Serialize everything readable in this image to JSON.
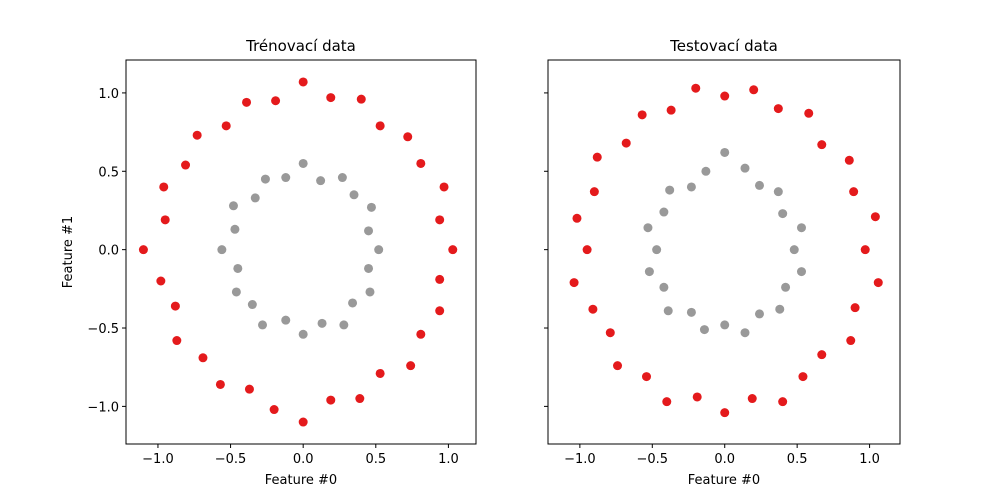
{
  "chart_data": [
    {
      "type": "scatter",
      "title": "Trénovací data",
      "xlabel": "Feature #0",
      "ylabel": "Feature #1",
      "xlim": [
        -1.22,
        1.19
      ],
      "ylim": [
        -1.24,
        1.21
      ],
      "xticks": [
        {
          "value": -1,
          "label": "−1.0"
        },
        {
          "value": -0.5,
          "label": "−0.5"
        },
        {
          "value": 0,
          "label": "0.0"
        },
        {
          "value": 0.5,
          "label": "0.5"
        },
        {
          "value": 1,
          "label": "1.0"
        }
      ],
      "yticks": [
        {
          "value": -1,
          "label": "−1.0"
        },
        {
          "value": -0.5,
          "label": "−0.5"
        },
        {
          "value": 0,
          "label": "0.0"
        },
        {
          "value": 0.5,
          "label": "0.5"
        },
        {
          "value": 1,
          "label": "1.0"
        }
      ],
      "show_ytick_labels": true,
      "series": [
        {
          "color": "#e41a1c",
          "x": [
            1.03,
            0.94,
            0.97,
            0.81,
            0.72,
            0.53,
            0.4,
            0.19,
            0.0,
            -0.19,
            -0.39,
            -0.53,
            -0.73,
            -0.81,
            -0.96,
            -0.95,
            -1.1,
            -0.98,
            -0.88,
            -0.87,
            -0.69,
            -0.57,
            -0.37,
            -0.2,
            0.0,
            0.19,
            0.39,
            0.53,
            0.74,
            0.81,
            0.94,
            0.94
          ],
          "y": [
            0.0,
            0.19,
            0.4,
            0.55,
            0.72,
            0.79,
            0.96,
            0.97,
            1.07,
            0.95,
            0.94,
            0.79,
            0.73,
            0.54,
            0.4,
            0.19,
            0.0,
            -0.2,
            -0.36,
            -0.58,
            -0.69,
            -0.86,
            -0.89,
            -1.02,
            -1.1,
            -0.96,
            -0.95,
            -0.79,
            -0.74,
            -0.54,
            -0.39,
            -0.19
          ]
        },
        {
          "color": "#999999",
          "x": [
            0.52,
            0.45,
            0.47,
            0.35,
            0.27,
            0.12,
            0.0,
            -0.12,
            -0.26,
            -0.33,
            -0.48,
            -0.47,
            -0.56,
            -0.45,
            -0.46,
            -0.35,
            -0.28,
            -0.12,
            0.0,
            0.13,
            0.28,
            0.34,
            0.46,
            0.45
          ],
          "y": [
            0.0,
            0.12,
            0.27,
            0.35,
            0.46,
            0.44,
            0.55,
            0.46,
            0.45,
            0.33,
            0.28,
            0.13,
            0.0,
            -0.12,
            -0.27,
            -0.35,
            -0.48,
            -0.45,
            -0.54,
            -0.47,
            -0.48,
            -0.34,
            -0.27,
            -0.12
          ]
        }
      ]
    },
    {
      "type": "scatter",
      "title": "Testovací data",
      "xlabel": "Feature #0",
      "xlim": [
        -1.22,
        1.21
      ],
      "ylim": [
        -1.24,
        1.21
      ],
      "xticks": [
        {
          "value": -1,
          "label": "−1.0"
        },
        {
          "value": -0.5,
          "label": "−0.5"
        },
        {
          "value": 0,
          "label": "0.0"
        },
        {
          "value": 0.5,
          "label": "0.5"
        },
        {
          "value": 1,
          "label": "1.0"
        }
      ],
      "yticks": [
        -1,
        -0.5,
        0,
        0.5,
        1
      ],
      "show_ytick_labels": false,
      "series": [
        {
          "color": "#e41a1c",
          "x": [
            0.97,
            1.04,
            0.89,
            0.86,
            0.67,
            0.58,
            0.37,
            0.2,
            0.0,
            -0.2,
            -0.37,
            -0.57,
            -0.68,
            -0.88,
            -0.9,
            -1.02,
            -0.95,
            -1.04,
            -0.91,
            -0.79,
            -0.74,
            -0.54,
            -0.4,
            -0.19,
            0.0,
            0.19,
            0.4,
            0.54,
            0.67,
            0.87,
            0.9,
            1.06
          ],
          "y": [
            0.0,
            0.21,
            0.37,
            0.57,
            0.67,
            0.87,
            0.9,
            1.02,
            0.98,
            1.03,
            0.89,
            0.86,
            0.68,
            0.59,
            0.37,
            0.2,
            0.0,
            -0.21,
            -0.38,
            -0.53,
            -0.74,
            -0.81,
            -0.97,
            -0.94,
            -1.04,
            -0.95,
            -0.97,
            -0.81,
            -0.67,
            -0.58,
            -0.37,
            -0.21
          ]
        },
        {
          "color": "#999999",
          "x": [
            0.48,
            0.53,
            0.4,
            0.37,
            0.24,
            0.14,
            0.0,
            -0.13,
            -0.23,
            -0.38,
            -0.42,
            -0.53,
            -0.47,
            -0.52,
            -0.42,
            -0.39,
            -0.23,
            -0.14,
            0.0,
            0.14,
            0.24,
            0.38,
            0.42,
            0.53
          ],
          "y": [
            0.0,
            0.14,
            0.23,
            0.37,
            0.41,
            0.52,
            0.62,
            0.5,
            0.4,
            0.38,
            0.24,
            0.14,
            0.0,
            -0.14,
            -0.24,
            -0.39,
            -0.4,
            -0.51,
            -0.48,
            -0.53,
            -0.41,
            -0.38,
            -0.24,
            -0.14
          ]
        }
      ]
    }
  ]
}
